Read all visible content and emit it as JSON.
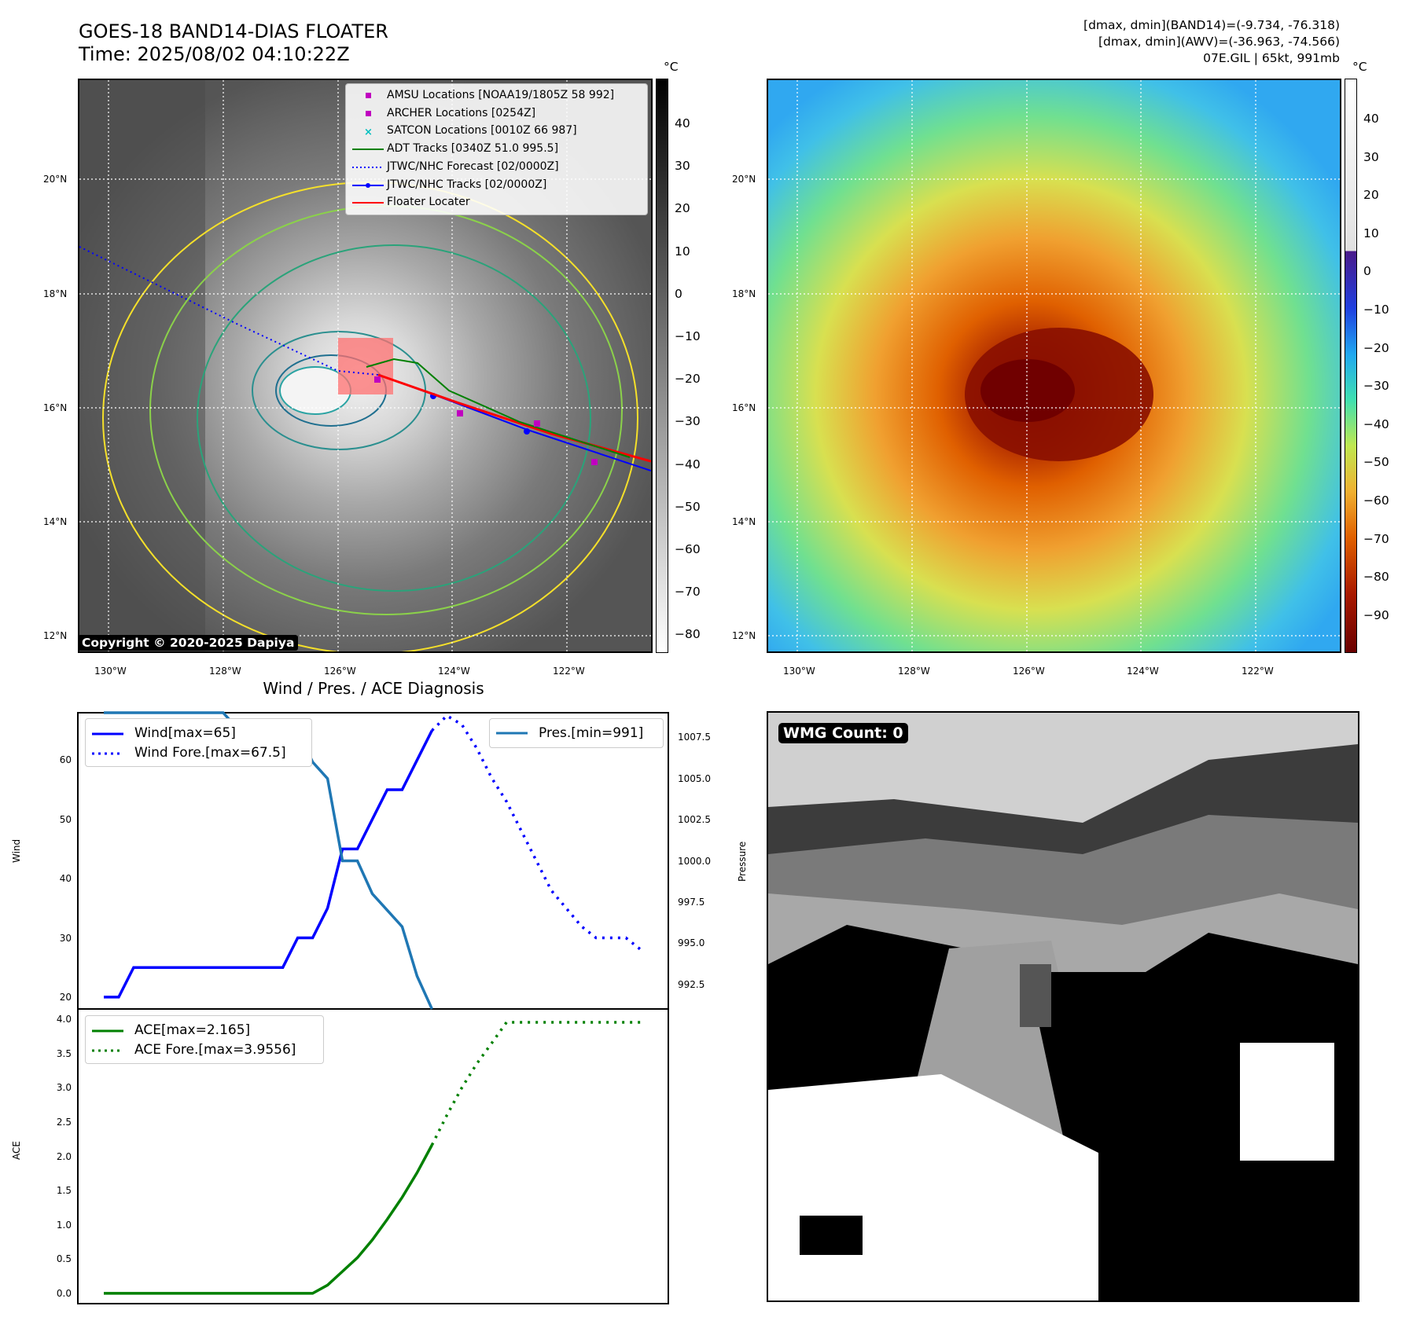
{
  "header": {
    "title_line1": "GOES-18 BAND14-DIAS FLOATER",
    "title_line2": "Time: 2025/08/02 04:10:22Z",
    "right_line1": "[dmax, dmin](BAND14)=(-9.734, -76.318)",
    "right_line2": "[dmax, dmin](AWV)=(-36.963, -74.566)",
    "right_line3": "07E.GIL | 65kt, 991mb"
  },
  "maps": {
    "lon_ticks": [
      "130°W",
      "128°W",
      "126°W",
      "124°W",
      "122°W"
    ],
    "lat_ticks": [
      "20°N",
      "18°N",
      "16°N",
      "14°N",
      "12°N"
    ],
    "copyright": "Copyright © 2020-2025 Dapiya",
    "legend": [
      {
        "label": "AMSU Locations [NOAA19/1805Z 58 992]",
        "symbol": "square",
        "color": "#c000c0"
      },
      {
        "label": "ARCHER Locations [0254Z]",
        "symbol": "square",
        "color": "#c000c0"
      },
      {
        "label": "SATCON Locations [0010Z 66 987]",
        "symbol": "x",
        "color": "#00bfbf"
      },
      {
        "label": "ADT Tracks [0340Z 51.0 995.5]",
        "symbol": "line",
        "color": "#008000"
      },
      {
        "label": "JTWC/NHC Forecast [02/0000Z]",
        "symbol": "dotted",
        "color": "#0000ff"
      },
      {
        "label": "JTWC/NHC Tracks [02/0000Z]",
        "symbol": "line-dot",
        "color": "#0000ff"
      },
      {
        "label": "Floater Locater",
        "symbol": "line",
        "color": "#ff0000"
      }
    ],
    "cbar_unit": "°C",
    "cbar1_ticks": [
      "40",
      "30",
      "20",
      "10",
      "0",
      "−10",
      "−20",
      "−30",
      "−40",
      "−50",
      "−60",
      "−70",
      "−80"
    ],
    "cbar2_ticks": [
      "40",
      "30",
      "20",
      "10",
      "0",
      "−10",
      "−20",
      "−30",
      "−40",
      "−50",
      "−60",
      "−70",
      "−80",
      "−90"
    ]
  },
  "diagnosis": {
    "title": "Wind / Pres. / ACE Diagnosis",
    "wind_ylabel": "Wind",
    "pres_ylabel": "Pressure",
    "ace_ylabel": "ACE",
    "wind_ticks": [
      "60",
      "50",
      "40",
      "30",
      "20"
    ],
    "pres_ticks": [
      "1007.5",
      "1005.0",
      "1002.5",
      "1000.0",
      "997.5",
      "995.0",
      "992.5"
    ],
    "ace_ticks": [
      "4.0",
      "3.5",
      "3.0",
      "2.5",
      "2.0",
      "1.5",
      "1.0",
      "0.5",
      "0.0"
    ],
    "legend_wind": "Wind[max=65]",
    "legend_wind_fore": "Wind Fore.[max=67.5]",
    "legend_pres": "Pres.[min=991]",
    "legend_ace": "ACE[max=2.165]",
    "legend_ace_fore": "ACE Fore.[max=3.9556]"
  },
  "wmg": {
    "label": "WMG Count: 0"
  },
  "chart_data": [
    {
      "type": "line",
      "title": "Wind / Pres. / ACE Diagnosis",
      "ylabel": "Wind",
      "ylim": [
        18,
        68
      ],
      "series": [
        {
          "name": "Wind[max=65]",
          "color": "#0000ff",
          "style": "solid",
          "x": [
            0,
            1,
            2,
            3,
            4,
            5,
            6,
            7,
            8,
            9,
            10,
            11,
            12,
            13,
            14,
            15,
            16,
            17,
            18,
            19,
            20,
            21,
            22
          ],
          "y": [
            20,
            20,
            25,
            25,
            25,
            25,
            25,
            25,
            25,
            25,
            25,
            25,
            25,
            30,
            30,
            35,
            45,
            45,
            50,
            55,
            55,
            60,
            65
          ]
        },
        {
          "name": "Wind Fore.[max=67.5]",
          "color": "#0000ff",
          "style": "dotted",
          "x": [
            22,
            23,
            24,
            25,
            26,
            27,
            28,
            29,
            30,
            31,
            32,
            33,
            34,
            35,
            36
          ],
          "y": [
            65,
            67.5,
            66,
            62,
            57,
            53,
            48,
            43,
            38,
            35,
            32,
            30,
            30,
            30,
            28
          ]
        }
      ]
    },
    {
      "type": "line",
      "ylabel": "Pressure",
      "ylim": [
        991,
        1009
      ],
      "series": [
        {
          "name": "Pres.[min=991]",
          "color": "#1f77b4",
          "style": "solid",
          "x": [
            0,
            1,
            2,
            3,
            4,
            5,
            6,
            7,
            8,
            9,
            10,
            11,
            12,
            13,
            14,
            15,
            16,
            17,
            18,
            19,
            20,
            21,
            22
          ],
          "y": [
            1009,
            1009,
            1009,
            1009,
            1009,
            1009,
            1009,
            1009,
            1009,
            1008,
            1008,
            1008,
            1008,
            1008,
            1006,
            1005,
            1000,
            1000,
            998,
            997,
            996,
            993,
            991
          ]
        }
      ]
    },
    {
      "type": "line",
      "ylabel": "ACE",
      "ylim": [
        -0.15,
        4.15
      ],
      "series": [
        {
          "name": "ACE[max=2.165]",
          "color": "#008000",
          "style": "solid",
          "x": [
            0,
            1,
            2,
            3,
            4,
            5,
            6,
            7,
            8,
            9,
            10,
            11,
            12,
            13,
            14,
            15,
            16,
            17,
            18,
            19,
            20,
            21,
            22
          ],
          "y": [
            0,
            0,
            0,
            0,
            0,
            0,
            0,
            0,
            0,
            0,
            0,
            0,
            0,
            0,
            0,
            0.12,
            0.32,
            0.52,
            0.78,
            1.08,
            1.4,
            1.76,
            2.165
          ]
        },
        {
          "name": "ACE Fore.[max=3.9556]",
          "color": "#008000",
          "style": "dotted",
          "x": [
            22,
            23,
            24,
            25,
            26,
            27,
            28,
            29,
            30,
            31,
            32,
            33,
            34,
            35,
            36
          ],
          "y": [
            2.165,
            2.6,
            3.0,
            3.35,
            3.65,
            3.9556,
            3.9556,
            3.9556,
            3.9556,
            3.9556,
            3.9556,
            3.9556,
            3.9556,
            3.9556,
            3.9556
          ]
        }
      ]
    }
  ]
}
